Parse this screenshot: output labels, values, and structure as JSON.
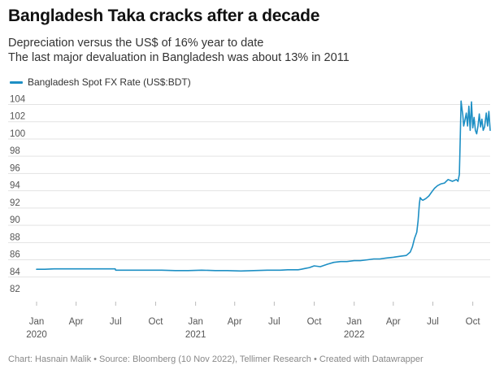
{
  "header": {
    "title": "Bangladesh Taka cracks after a decade",
    "subtitle_lines": [
      "Depreciation versus the US$ of 16% year to date",
      "The last major devaluation in Bangladesh was about 13% in 2011"
    ]
  },
  "footer": {
    "credit": "Chart: Hasnain Malik • Source: Bloomberg (10 Nov 2022), Tellimer Research • Created with Datawrapper"
  },
  "colors": {
    "line": "#1d8fc4",
    "grid": "#e3e3e3",
    "zero": "#333333"
  },
  "chart_data": {
    "type": "line",
    "title": "Bangladesh Taka cracks after a decade",
    "legend": {
      "placement": "top-left",
      "entries": [
        "Bangladesh Spot FX Rate (US$:BDT)"
      ]
    },
    "grid": true,
    "ylim": [
      82,
      104
    ],
    "xlim": [
      "2020-01-01",
      "2022-11-10"
    ],
    "y_ticks": [
      82,
      84,
      86,
      88,
      90,
      92,
      94,
      96,
      98,
      100,
      102,
      104
    ],
    "x_ticks": [
      {
        "date": "2020-01-01",
        "label": "Jan",
        "year": "2020"
      },
      {
        "date": "2020-04-01",
        "label": "Apr",
        "year": ""
      },
      {
        "date": "2020-07-01",
        "label": "Jul",
        "year": ""
      },
      {
        "date": "2020-10-01",
        "label": "Oct",
        "year": ""
      },
      {
        "date": "2021-01-01",
        "label": "Jan",
        "year": "2021"
      },
      {
        "date": "2021-04-01",
        "label": "Apr",
        "year": ""
      },
      {
        "date": "2021-07-01",
        "label": "Jul",
        "year": ""
      },
      {
        "date": "2021-10-01",
        "label": "Oct",
        "year": ""
      },
      {
        "date": "2022-01-01",
        "label": "Jan",
        "year": "2022"
      },
      {
        "date": "2022-04-01",
        "label": "Apr",
        "year": ""
      },
      {
        "date": "2022-07-01",
        "label": "Jul",
        "year": ""
      },
      {
        "date": "2022-10-01",
        "label": "Oct",
        "year": ""
      }
    ],
    "series": [
      {
        "name": "Bangladesh Spot FX Rate (US$:BDT)",
        "x": [
          "2020-01-01",
          "2020-01-20",
          "2020-02-10",
          "2020-03-01",
          "2020-03-20",
          "2020-04-15",
          "2020-05-15",
          "2020-06-15",
          "2020-06-30",
          "2020-07-01",
          "2020-08-15",
          "2020-09-15",
          "2020-10-15",
          "2020-11-15",
          "2020-12-15",
          "2021-01-15",
          "2021-02-15",
          "2021-03-15",
          "2021-04-15",
          "2021-05-15",
          "2021-06-15",
          "2021-07-15",
          "2021-08-01",
          "2021-08-15",
          "2021-08-25",
          "2021-09-01",
          "2021-09-10",
          "2021-09-20",
          "2021-10-01",
          "2021-10-15",
          "2021-11-01",
          "2021-11-15",
          "2021-12-01",
          "2021-12-15",
          "2022-01-01",
          "2022-01-15",
          "2022-02-01",
          "2022-02-15",
          "2022-03-01",
          "2022-03-15",
          "2022-04-01",
          "2022-04-15",
          "2022-05-01",
          "2022-05-10",
          "2022-05-15",
          "2022-05-20",
          "2022-05-25",
          "2022-05-28",
          "2022-05-31",
          "2022-06-02",
          "2022-06-05",
          "2022-06-08",
          "2022-06-15",
          "2022-06-22",
          "2022-06-29",
          "2022-07-05",
          "2022-07-12",
          "2022-07-20",
          "2022-07-28",
          "2022-08-05",
          "2022-08-10",
          "2022-08-15",
          "2022-08-20",
          "2022-08-24",
          "2022-08-28",
          "2022-08-31",
          "2022-09-02",
          "2022-09-04",
          "2022-09-06",
          "2022-09-08",
          "2022-09-10",
          "2022-09-13",
          "2022-09-16",
          "2022-09-19",
          "2022-09-22",
          "2022-09-25",
          "2022-09-28",
          "2022-10-01",
          "2022-10-04",
          "2022-10-07",
          "2022-10-10",
          "2022-10-13",
          "2022-10-16",
          "2022-10-19",
          "2022-10-22",
          "2022-10-25",
          "2022-10-28",
          "2022-11-01",
          "2022-11-04",
          "2022-11-07",
          "2022-11-10"
        ],
        "y": [
          84.9,
          84.9,
          84.95,
          84.95,
          84.95,
          84.95,
          84.95,
          84.95,
          84.95,
          84.8,
          84.8,
          84.8,
          84.8,
          84.75,
          84.75,
          84.8,
          84.75,
          84.75,
          84.7,
          84.75,
          84.8,
          84.8,
          84.85,
          84.85,
          84.85,
          84.9,
          85.0,
          85.1,
          85.3,
          85.2,
          85.5,
          85.7,
          85.8,
          85.8,
          85.9,
          85.9,
          86.0,
          86.1,
          86.1,
          86.2,
          86.3,
          86.4,
          86.5,
          86.9,
          87.5,
          88.5,
          89.2,
          90.5,
          92.5,
          93.2,
          93.0,
          92.9,
          93.1,
          93.4,
          93.9,
          94.3,
          94.6,
          94.8,
          94.9,
          95.3,
          95.2,
          95.1,
          95.2,
          95.3,
          95.1,
          95.9,
          99.8,
          104.4,
          103.5,
          102.8,
          101.5,
          102.2,
          103.0,
          101.5,
          103.8,
          101.0,
          104.3,
          101.3,
          102.5,
          101.0,
          100.6,
          101.5,
          102.9,
          101.4,
          102.3,
          101.0,
          101.4,
          103.0,
          101.5,
          103.2,
          101.0
        ]
      }
    ]
  }
}
